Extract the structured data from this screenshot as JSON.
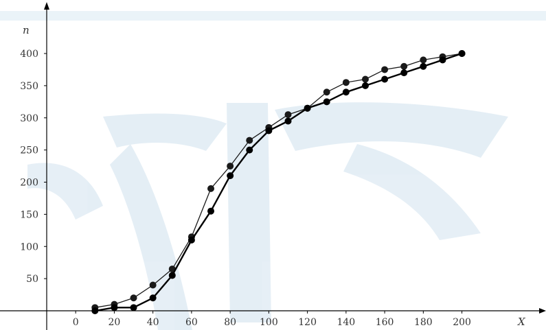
{
  "chart_data": {
    "type": "line",
    "xlabel": "X",
    "ylabel": "n",
    "xlim": [
      -15,
      215
    ],
    "ylim": [
      0,
      410
    ],
    "xticks": [
      0,
      20,
      40,
      60,
      80,
      100,
      120,
      140,
      160,
      180,
      200
    ],
    "yticks": [
      50,
      100,
      150,
      200,
      250,
      300,
      350,
      400
    ],
    "x_tick_labels": [
      "0",
      "20",
      "40",
      "60",
      "80",
      "100",
      "120",
      "140",
      "160",
      "180",
      "200"
    ],
    "y_tick_labels": [
      "50",
      "100",
      "150",
      "200",
      "250",
      "300",
      "350",
      "400"
    ],
    "grid": false,
    "legend": "none",
    "series": [
      {
        "x": [
          10,
          20,
          30,
          40,
          50,
          60,
          70,
          80,
          90,
          100,
          110,
          120,
          130,
          140,
          150,
          160,
          170,
          180,
          190,
          200
        ],
        "values": [
          5,
          10,
          20,
          40,
          65,
          115,
          190,
          225,
          265,
          285,
          305,
          315,
          340,
          355,
          360,
          375,
          380,
          390,
          395,
          400
        ],
        "color": "#1a1a1a"
      },
      {
        "x": [
          10,
          20,
          30,
          40,
          50,
          60,
          70,
          80,
          90,
          100,
          110,
          120,
          130,
          140,
          150,
          160,
          170,
          180,
          190,
          200
        ],
        "values": [
          0,
          5,
          5,
          20,
          55,
          110,
          155,
          210,
          250,
          280,
          295,
          315,
          325,
          340,
          350,
          360,
          370,
          380,
          390,
          400
        ],
        "color": "#000000"
      }
    ]
  }
}
